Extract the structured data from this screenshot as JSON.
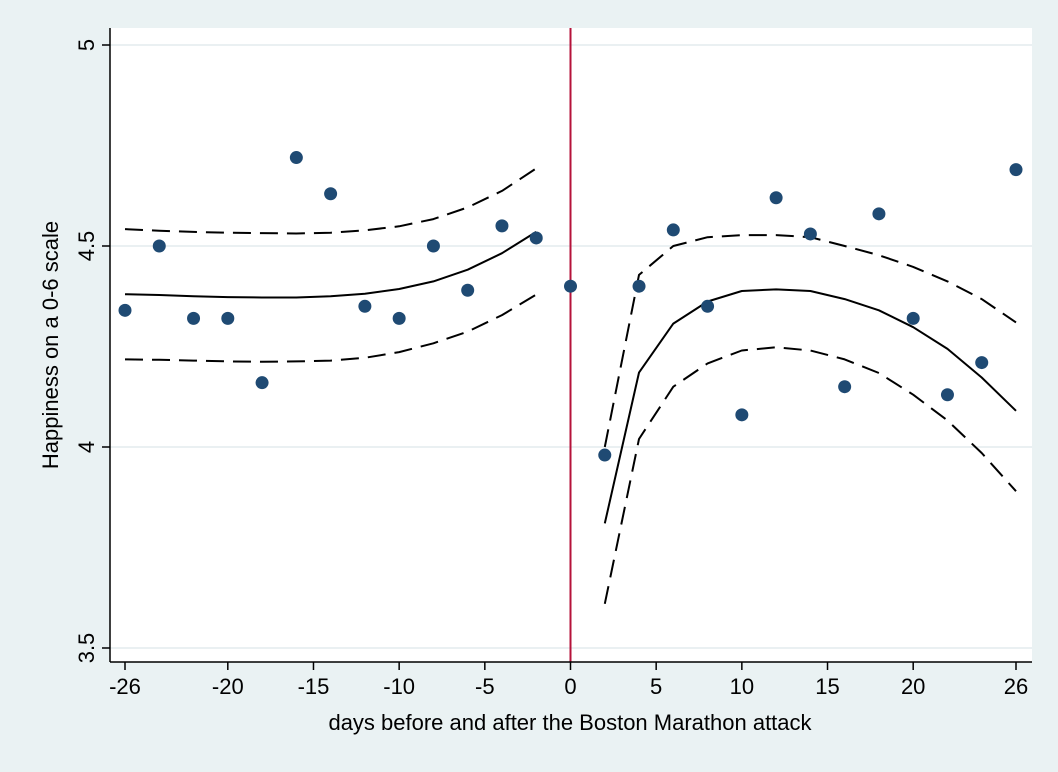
{
  "chart_data": {
    "type": "scatter",
    "title": "",
    "xlabel": "days before and after the Boston Marathon attack",
    "ylabel": "Happiness on a 0-6 scale",
    "xlim": [
      -26,
      26
    ],
    "ylim": [
      3.5,
      5.0
    ],
    "xticks": [
      -26,
      -20,
      -15,
      -10,
      -5,
      0,
      5,
      10,
      15,
      20,
      26
    ],
    "yticks": [
      3.5,
      4,
      4.5,
      5
    ],
    "xtick_labels": [
      "-26",
      "-20",
      "-15",
      "-10",
      "-5",
      "0",
      "5",
      "10",
      "15",
      "20",
      "26"
    ],
    "ytick_labels": [
      "3.5",
      "4",
      "4.5",
      "5"
    ],
    "grid": "horizontal",
    "legend": "none",
    "event_line": {
      "x": 0,
      "color": "#b5123a"
    },
    "colors": {
      "points": "#1f4a73",
      "lines": "#000000",
      "plot_background": "#ffffff",
      "outer_background": "#eaf2f3",
      "grid": "#e3ecee"
    },
    "points": {
      "x": [
        -26,
        -24,
        -22,
        -20,
        -18,
        -16,
        -14,
        -12,
        -10,
        -8,
        -6,
        -4,
        -2,
        0,
        2,
        4,
        6,
        8,
        10,
        12,
        14,
        16,
        18,
        20,
        22,
        24,
        26
      ],
      "y": [
        4.34,
        4.5,
        4.32,
        4.32,
        4.16,
        4.72,
        4.63,
        4.35,
        4.32,
        4.5,
        4.39,
        4.55,
        4.52,
        4.4,
        3.98,
        4.4,
        4.54,
        4.35,
        4.08,
        4.62,
        4.53,
        4.15,
        4.58,
        4.32,
        4.13,
        4.21,
        4.69
      ]
    },
    "series": [
      {
        "style": "solid",
        "x": [
          -26,
          -24,
          -22,
          -20,
          -18,
          -16,
          -14,
          -12,
          -10,
          -8,
          -6,
          -4,
          -2
        ],
        "y": [
          4.38,
          4.378,
          4.375,
          4.373,
          4.372,
          4.372,
          4.375,
          4.381,
          4.393,
          4.412,
          4.441,
          4.482,
          4.535
        ]
      },
      {
        "style": "dashed",
        "x": [
          -26,
          -24,
          -22,
          -20,
          -18,
          -16,
          -14,
          -12,
          -10,
          -8,
          -6,
          -4,
          -2
        ],
        "y": [
          4.542,
          4.538,
          4.535,
          4.533,
          4.532,
          4.531,
          4.533,
          4.539,
          4.549,
          4.567,
          4.596,
          4.637,
          4.693
        ]
      },
      {
        "style": "dashed",
        "x": [
          -26,
          -24,
          -22,
          -20,
          -18,
          -16,
          -14,
          -12,
          -10,
          -8,
          -6,
          -4,
          -2
        ],
        "y": [
          4.218,
          4.217,
          4.215,
          4.213,
          4.212,
          4.213,
          4.215,
          4.222,
          4.236,
          4.258,
          4.287,
          4.328,
          4.379
        ]
      },
      {
        "style": "solid",
        "x": [
          2,
          4,
          6,
          8,
          10,
          12,
          14,
          16,
          18,
          20,
          22,
          24,
          26
        ],
        "y": [
          3.81,
          4.185,
          4.307,
          4.362,
          4.388,
          4.392,
          4.388,
          4.368,
          4.34,
          4.298,
          4.244,
          4.173,
          4.09
        ]
      },
      {
        "style": "dashed",
        "x": [
          2,
          4,
          6,
          8,
          10,
          12,
          14,
          16,
          18,
          20,
          22,
          24,
          26
        ],
        "y": [
          4.0,
          4.428,
          4.5,
          4.522,
          4.527,
          4.527,
          4.522,
          4.5,
          4.477,
          4.448,
          4.412,
          4.368,
          4.31
        ]
      },
      {
        "style": "dashed",
        "x": [
          2,
          4,
          6,
          8,
          10,
          12,
          14,
          16,
          18,
          20,
          22,
          24,
          26
        ],
        "y": [
          3.61,
          4.02,
          4.15,
          4.208,
          4.24,
          4.248,
          4.24,
          4.218,
          4.184,
          4.13,
          4.066,
          3.985,
          3.89
        ]
      }
    ]
  }
}
